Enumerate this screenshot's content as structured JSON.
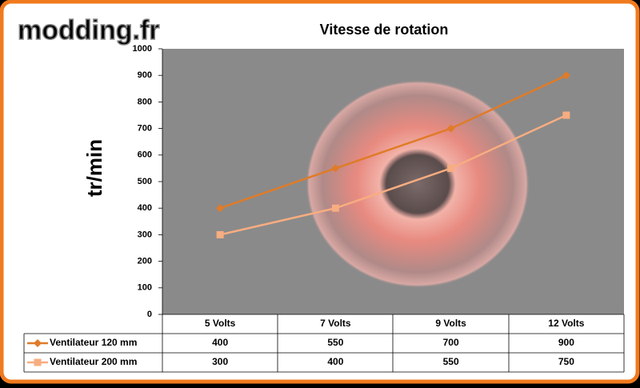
{
  "watermark": "modding.fr",
  "chart_data": {
    "type": "line",
    "title": "Vitesse de rotation",
    "y_label": "tr/min",
    "categories": [
      "5 Volts",
      "7 Volts",
      "9 Volts",
      "12 Volts"
    ],
    "series": [
      {
        "name": "Ventilateur 120 mm",
        "color": "#e07b28",
        "marker": "diamond",
        "values": [
          400,
          550,
          700,
          900
        ]
      },
      {
        "name": "Ventilateur 200 mm",
        "color": "#f7ad80",
        "marker": "square",
        "values": [
          300,
          400,
          550,
          750
        ]
      }
    ],
    "ylim": [
      0,
      1000
    ],
    "yticks": [
      0,
      100,
      200,
      300,
      400,
      500,
      600,
      700,
      800,
      900,
      1000
    ],
    "data_table": true
  }
}
